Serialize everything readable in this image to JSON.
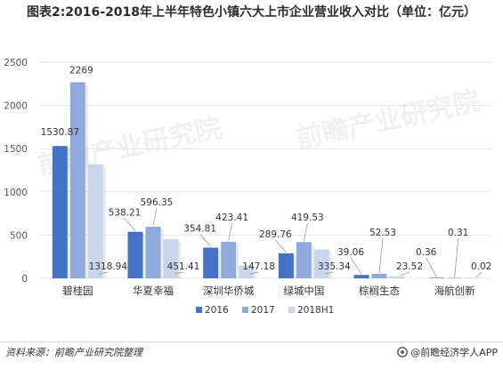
{
  "title": "图表2:2016-2018年上半年特色小镇六大上市企业营业收入对比（单位：亿元）",
  "footer": {
    "source": "资料来源：前瞻产业研究院整理",
    "brand": "@前瞻经济学人APP"
  },
  "watermark": "前瞻产业研究院",
  "colors": {
    "s2016": "#4472c4",
    "s2017": "#8faadc",
    "s2018H1": "#c9d5ea",
    "grid": "#e6e6e6",
    "leader": "#9a9a9a"
  },
  "chart_data": {
    "type": "bar",
    "title": "图表2:2016-2018年上半年特色小镇六大上市企业营业收入对比（单位：亿元）",
    "categories": [
      "碧桂园",
      "华夏幸福",
      "深圳华侨城",
      "绿城中国",
      "棕榈生态",
      "海航创新"
    ],
    "ylim": [
      0,
      2500
    ],
    "yticks": [
      0,
      500,
      1000,
      1500,
      2000,
      2500
    ],
    "grid": true,
    "legend_position": "bottom",
    "series": [
      {
        "name": "2016",
        "values": [
          1530.87,
          538.21,
          354.81,
          289.76,
          39.06,
          0.36
        ],
        "labels": [
          "1530.87",
          "538.21",
          "354.81",
          "289.76",
          "39.06",
          "0.36"
        ]
      },
      {
        "name": "2017",
        "values": [
          2269,
          596.35,
          423.41,
          419.53,
          52.53,
          0.31
        ],
        "labels": [
          "2269",
          "596.35",
          "423.41",
          "419.53",
          "52.53",
          "0.31"
        ]
      },
      {
        "name": "2018H1",
        "values": [
          1318.94,
          451.41,
          147.18,
          335.34,
          23.52,
          0.02
        ],
        "labels": [
          "1318.94",
          "451.41",
          "147.18",
          "335.34",
          "23.52",
          "0.02"
        ]
      }
    ]
  }
}
